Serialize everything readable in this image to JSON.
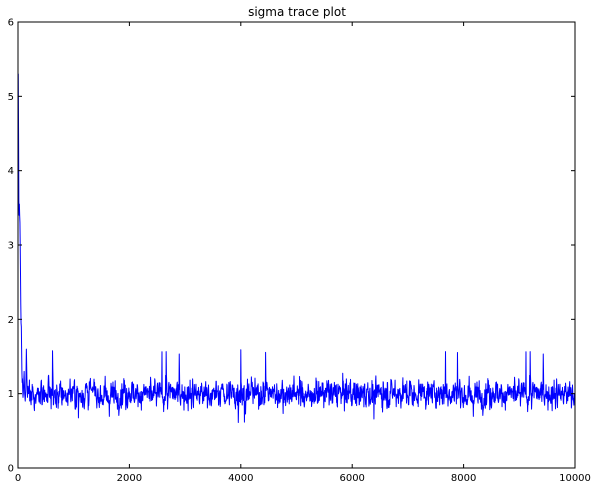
{
  "chart_data": {
    "type": "line",
    "title": "sigma trace plot",
    "xlabel": "",
    "ylabel": "",
    "xlim": [
      0,
      10000
    ],
    "ylim": [
      0,
      6
    ],
    "x_ticks": [
      0,
      2000,
      4000,
      6000,
      8000,
      10000
    ],
    "y_ticks": [
      0,
      1,
      2,
      3,
      4,
      5,
      6
    ],
    "x_tick_labels": [
      "0",
      "2000",
      "4000",
      "6000",
      "8000",
      "10000"
    ],
    "y_tick_labels": [
      "0",
      "1",
      "2",
      "3",
      "4",
      "5",
      "6"
    ],
    "grid": false,
    "series": [
      {
        "color": "#0000ff",
        "x": [
          0,
          5,
          10,
          15,
          20,
          25,
          30,
          35,
          40,
          45,
          50,
          55,
          60,
          65,
          70,
          75,
          80,
          85,
          90,
          95,
          100,
          110,
          120,
          130,
          140,
          150,
          160,
          170,
          180,
          190,
          200
        ],
        "values": [
          4.9,
          5.3,
          4.5,
          3.6,
          3.4,
          3.55,
          3.4,
          3.3,
          3.0,
          2.6,
          2.2,
          1.95,
          1.9,
          1.6,
          1.3,
          1.15,
          1.2,
          1.05,
          0.95,
          1.0,
          1.1,
          1.3,
          1.0,
          0.9,
          1.05,
          1.6,
          1.2,
          0.95,
          1.1,
          1.0,
          1.05
        ],
        "noise": {
          "x_start": 200,
          "x_end": 10000,
          "mean": 1.0,
          "typical_range": [
            0.75,
            1.35
          ],
          "min": 0.6,
          "max": 1.62
        }
      }
    ]
  }
}
